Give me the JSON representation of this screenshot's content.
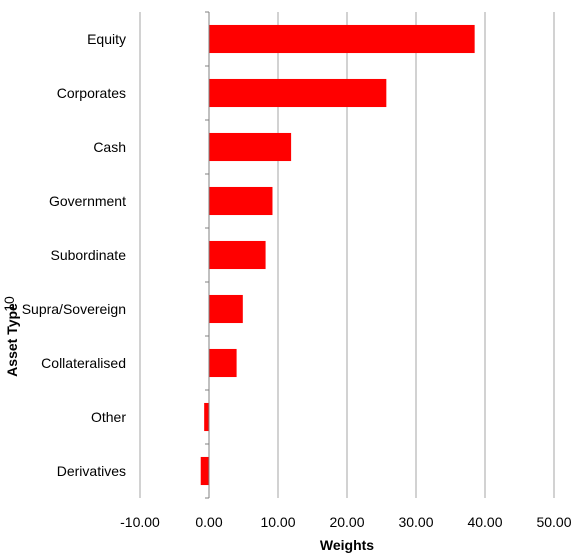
{
  "chart_data": {
    "type": "bar",
    "orientation": "horizontal",
    "categories": [
      "Equity",
      "Corporates",
      "Cash",
      "Government",
      "Subordinate",
      "Supra/Sovereign",
      "Collateralised",
      "Other",
      "Derivatives"
    ],
    "values": [
      38.5,
      25.7,
      11.9,
      9.2,
      8.2,
      4.9,
      4.0,
      -0.7,
      -1.2
    ],
    "xlabel": "Weights",
    "ylabel": "Asset Type",
    "xlim": [
      -10,
      50
    ],
    "x_ticks": [
      "-10.00",
      "0.00",
      "10.00",
      "20.00",
      "30.00",
      "40.00",
      "50.00"
    ],
    "stray_text": "10",
    "grid": "vertical",
    "legend": "none",
    "bar_color": "#ff0000",
    "grid_color": "#a6a6a6"
  }
}
